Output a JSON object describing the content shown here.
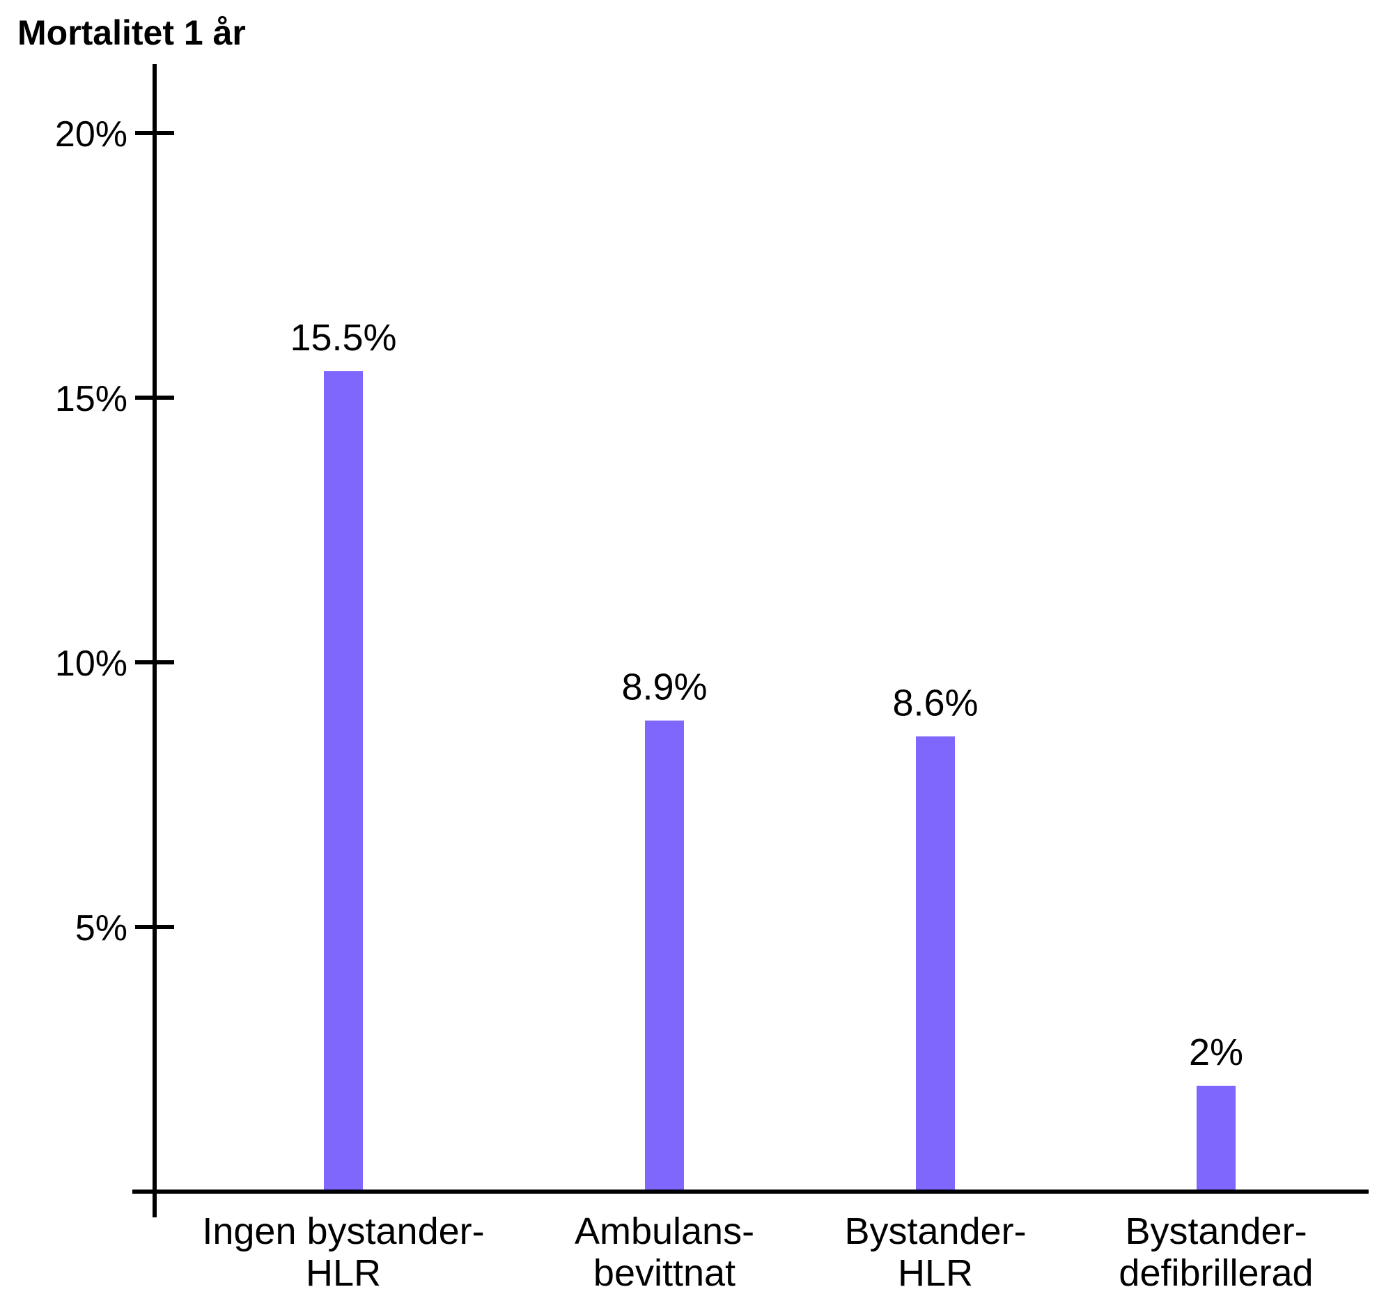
{
  "chart_data": {
    "type": "bar",
    "title": "Mortalitet 1 år",
    "categories": [
      [
        "Ingen bystander-",
        "HLR"
      ],
      [
        "Ambulans-",
        "bevittnat"
      ],
      [
        "Bystander-",
        "HLR"
      ],
      [
        "Bystander-",
        "defibrillerad"
      ]
    ],
    "values": [
      15.5,
      8.9,
      8.6,
      2
    ],
    "data_labels": [
      "15.5%",
      "8.9%",
      "8.6%",
      "2%"
    ],
    "yticks": [
      5,
      10,
      15,
      20
    ],
    "ytick_labels": [
      "5%",
      "10%",
      "15%",
      "20%"
    ],
    "ylim": [
      0,
      20.9
    ],
    "grid": false,
    "bar_color": "#7f66fc",
    "axis_color": "#000000"
  }
}
